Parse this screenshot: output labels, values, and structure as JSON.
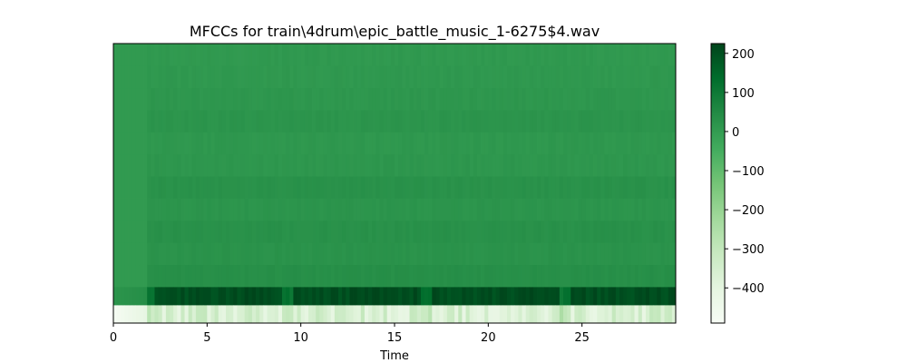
{
  "chart_data": {
    "type": "heatmap",
    "title": "MFCCs for train\\4drum\\epic_battle_music_1-6275$4.wav",
    "xlabel": "Time",
    "ylabel": "",
    "xlim": [
      0,
      30
    ],
    "x_ticks": [
      0,
      5,
      10,
      15,
      20,
      25
    ],
    "y_ticks": [],
    "colormap": "Greens",
    "colorbar": {
      "range": [
        -490,
        225
      ],
      "ticks": [
        200,
        100,
        0,
        -100,
        -200,
        -300,
        -400
      ],
      "tick_labels": [
        "200",
        "100",
        "0",
        "−100",
        "−200",
        "−300",
        "−400"
      ]
    },
    "n_coefficients": 13,
    "segment_boundaries": [
      1.9,
      9.3,
      16.7,
      24.1
    ],
    "row_profile": [
      -360,
      205,
      35,
      25,
      30,
      20,
      28,
      15,
      12,
      20,
      14,
      10,
      8
    ],
    "colors": {
      "cmap_low": "#f7fcf5",
      "cmap_high": "#00441b"
    }
  }
}
